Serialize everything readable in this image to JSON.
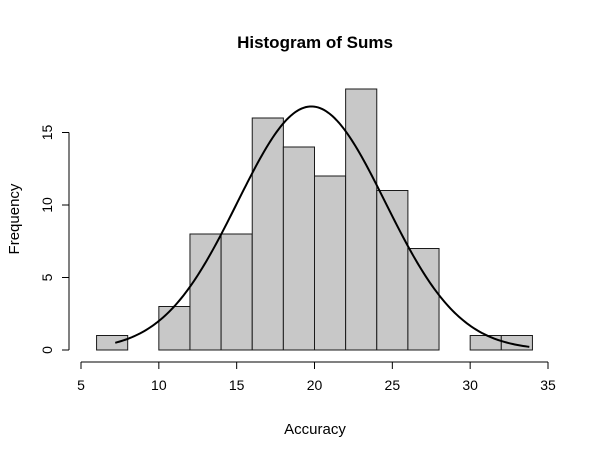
{
  "chart_data": {
    "type": "bar",
    "title": "Histogram of Sums",
    "xlabel": "Accuracy",
    "ylabel": "Frequency",
    "xlim": [
      5,
      35
    ],
    "ylim": [
      0,
      18
    ],
    "x_ticks": [
      5,
      10,
      15,
      20,
      25,
      30,
      35
    ],
    "y_ticks": [
      0,
      5,
      10,
      15
    ],
    "bins": [
      {
        "start": 6,
        "end": 8,
        "count": 1
      },
      {
        "start": 8,
        "end": 10,
        "count": 0
      },
      {
        "start": 10,
        "end": 12,
        "count": 3
      },
      {
        "start": 12,
        "end": 14,
        "count": 8
      },
      {
        "start": 14,
        "end": 16,
        "count": 8
      },
      {
        "start": 16,
        "end": 18,
        "count": 16
      },
      {
        "start": 18,
        "end": 20,
        "count": 14
      },
      {
        "start": 20,
        "end": 22,
        "count": 12
      },
      {
        "start": 22,
        "end": 24,
        "count": 18
      },
      {
        "start": 24,
        "end": 26,
        "count": 11
      },
      {
        "start": 26,
        "end": 28,
        "count": 7
      },
      {
        "start": 28,
        "end": 30,
        "count": 0
      },
      {
        "start": 30,
        "end": 32,
        "count": 1
      },
      {
        "start": 32,
        "end": 34,
        "count": 1
      }
    ],
    "normal_curve": {
      "mean": 19.8,
      "sd": 4.75,
      "x_range": [
        7.2,
        33.8
      ]
    },
    "bar_fill": "#c8c8c8",
    "bar_stroke": "#1a1a1a",
    "grid": false
  }
}
